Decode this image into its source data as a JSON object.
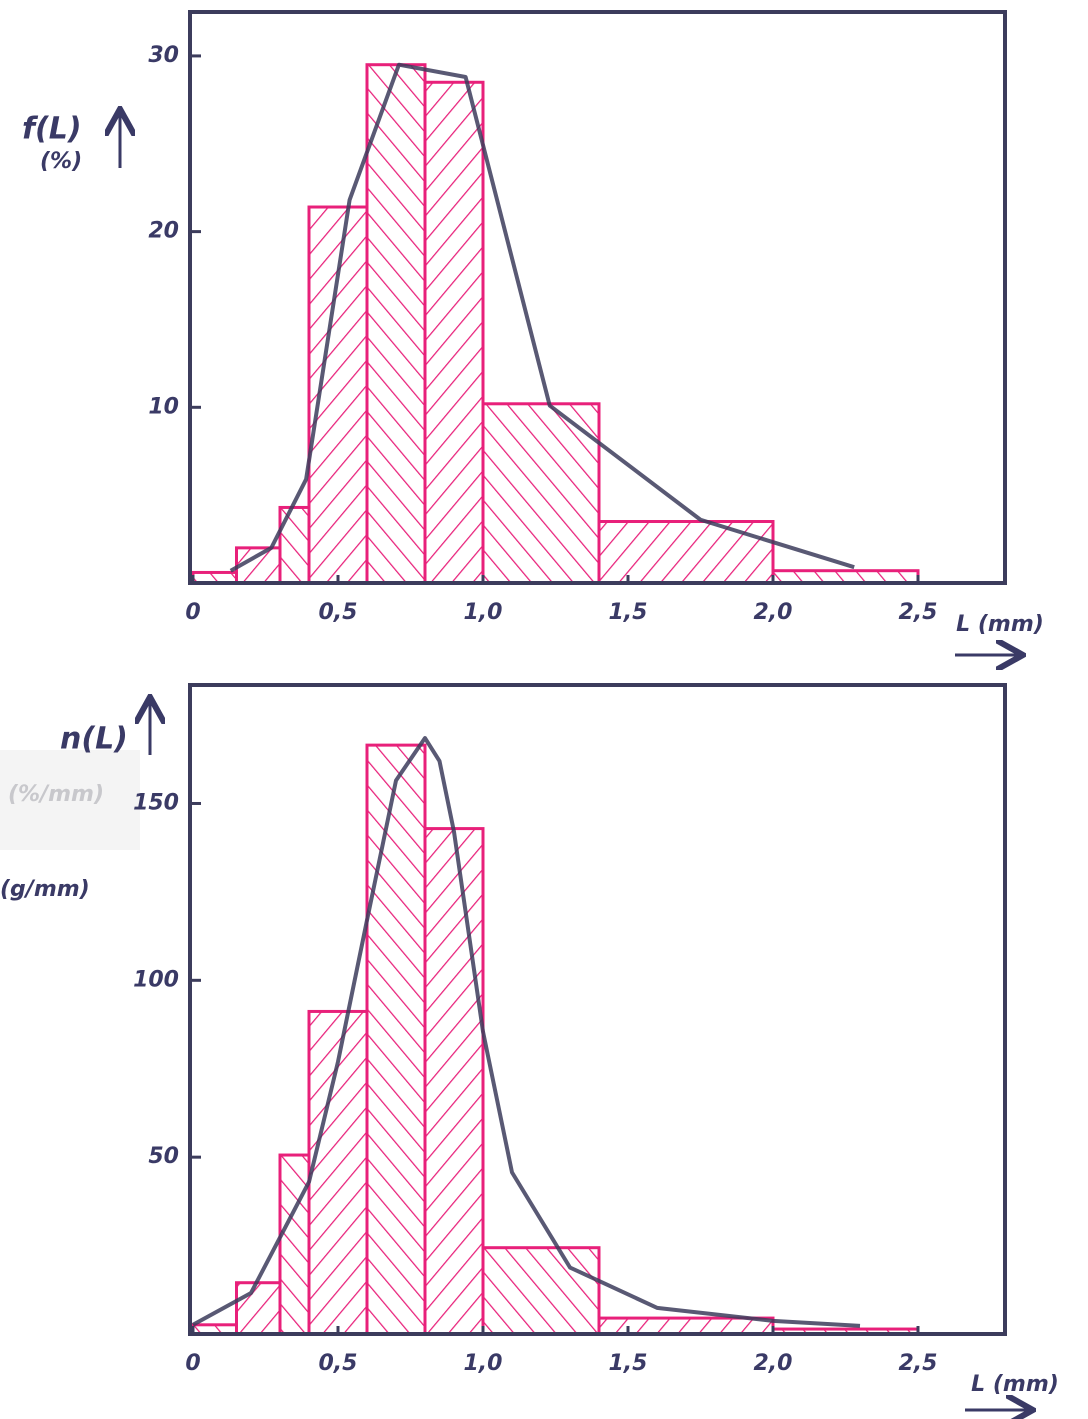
{
  "chart_data": [
    {
      "type": "histogram",
      "ylabel": "f(L)",
      "yunit": "(%)",
      "xlabel": "L (mm)",
      "bins": [
        0,
        0.15,
        0.3,
        0.4,
        0.6,
        0.8,
        1.0,
        1.4,
        2.0,
        2.5
      ],
      "values": [
        0.6,
        2.0,
        4.3,
        21.4,
        29.5,
        28.5,
        10.2,
        3.5,
        0.7
      ],
      "color": "#e8207a",
      "line": {
        "color": "#3c3c5c",
        "x": [
          0.13,
          0.27,
          0.39,
          0.54,
          0.71,
          0.94,
          1.23,
          1.75,
          2.28
        ],
        "values": [
          0.7,
          2.0,
          5.9,
          21.8,
          29.5,
          28.8,
          10.1,
          3.6,
          0.9
        ]
      },
      "xlim": [
        0,
        2.8
      ],
      "ylim": [
        0,
        32.5
      ],
      "xticks": [
        0,
        {
          "value": 0.5,
          "label": "0,5"
        },
        {
          "value": 1.0,
          "label": "1,0"
        },
        {
          "value": 1.5,
          "label": "1,5"
        },
        {
          "value": 2.0,
          "label": "2,0"
        },
        {
          "value": 2.5,
          "label": "2,5"
        }
      ],
      "yticks": [
        10,
        20,
        30
      ]
    },
    {
      "type": "histogram",
      "ylabel": "n(L)",
      "yunit": "(g/mm)",
      "yunit_alt": "(%/mm)",
      "xlabel": "L (mm)",
      "bins": [
        0,
        0.15,
        0.3,
        0.4,
        0.6,
        0.8,
        1.0,
        1.4,
        2.0,
        2.5
      ],
      "values": [
        2.6,
        14.5,
        50.6,
        91.2,
        166.5,
        142.9,
        24.4,
        4.5,
        1.4
      ],
      "color": "#e8207a",
      "line": {
        "color": "#3c3c5c",
        "x": [
          0.0,
          0.2,
          0.4,
          0.5,
          0.6,
          0.7,
          0.8,
          0.85,
          0.9,
          1.0,
          1.1,
          1.3,
          1.6,
          2.0,
          2.3
        ],
        "values": [
          2.6,
          11.6,
          43,
          77,
          117,
          156.5,
          168.5,
          162,
          142,
          85.5,
          45.7,
          18.8,
          7.4,
          3.7,
          2.3
        ]
      },
      "xlim": [
        0,
        2.8
      ],
      "ylim": [
        0,
        183.5
      ],
      "xticks": [
        0,
        {
          "value": 0.5,
          "label": "0,5"
        },
        {
          "value": 1.0,
          "label": "1,0"
        },
        {
          "value": 1.5,
          "label": "1,5"
        },
        {
          "value": 2.0,
          "label": "2,0"
        },
        {
          "value": 2.5,
          "label": "2,5"
        }
      ],
      "yticks": [
        50,
        100,
        150
      ]
    }
  ]
}
